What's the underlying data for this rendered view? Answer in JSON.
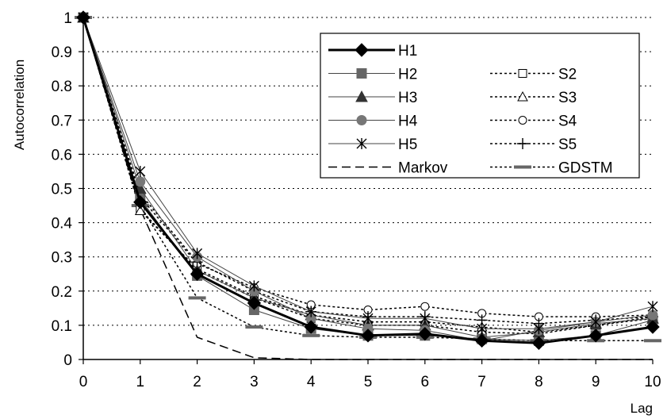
{
  "chart_data": {
    "type": "line",
    "title": "",
    "xlabel": "Lag",
    "ylabel": "Autocorrelation",
    "xlim": [
      0,
      10
    ],
    "ylim": [
      0,
      1
    ],
    "x_ticks": [
      "0",
      "1",
      "2",
      "3",
      "4",
      "5",
      "6",
      "7",
      "8",
      "9",
      "10"
    ],
    "y_ticks": [
      "0",
      "0.1",
      "0.2",
      "0.3",
      "0.4",
      "0.5",
      "0.6",
      "0.7",
      "0.8",
      "0.9",
      "1"
    ],
    "grid": "horizontal dotted",
    "legend_position": "top-right",
    "x": [
      0,
      1,
      2,
      3,
      4,
      5,
      6,
      7,
      8,
      9,
      10
    ],
    "series": [
      {
        "name": "H1",
        "line": "solid",
        "width": 3,
        "marker": "diamond",
        "fill": "#000000",
        "values": [
          1,
          0.46,
          0.25,
          0.165,
          0.095,
          0.07,
          0.075,
          0.055,
          0.048,
          0.07,
          0.095
        ]
      },
      {
        "name": "H2",
        "line": "solid",
        "width": 1,
        "marker": "square",
        "fill": "#666666",
        "values": [
          1,
          0.47,
          0.245,
          0.145,
          0.09,
          0.07,
          0.07,
          0.06,
          0.055,
          0.07,
          0.115
        ]
      },
      {
        "name": "H3",
        "line": "solid",
        "width": 1,
        "marker": "triangle",
        "fill": "#333333",
        "values": [
          1,
          0.5,
          0.26,
          0.18,
          0.13,
          0.1,
          0.1,
          0.065,
          0.08,
          0.105,
          0.12
        ]
      },
      {
        "name": "H4",
        "line": "solid",
        "width": 1,
        "marker": "circle",
        "fill": "#777777",
        "values": [
          1,
          0.52,
          0.3,
          0.2,
          0.12,
          0.09,
          0.085,
          0.055,
          0.085,
          0.11,
          0.13
        ]
      },
      {
        "name": "H5",
        "line": "solid",
        "width": 1,
        "marker": "asterisk",
        "fill": "#000000",
        "values": [
          1,
          0.55,
          0.31,
          0.215,
          0.14,
          0.12,
          0.12,
          0.09,
          0.09,
          0.11,
          0.155
        ]
      },
      {
        "name": "S2",
        "line": "dotted",
        "width": 1.5,
        "marker": "square-open",
        "fill": "#ffffff",
        "values": [
          1,
          0.44,
          0.26,
          0.18,
          0.12,
          0.1,
          0.1,
          0.08,
          0.075,
          0.1,
          0.12
        ]
      },
      {
        "name": "S3",
        "line": "dotted",
        "width": 1.5,
        "marker": "triangle-open",
        "fill": "#ffffff",
        "values": [
          1,
          0.435,
          0.265,
          0.185,
          0.13,
          0.11,
          0.11,
          0.095,
          0.08,
          0.1,
          0.125
        ]
      },
      {
        "name": "S4",
        "line": "dotted",
        "width": 1.5,
        "marker": "circle-open",
        "fill": "#ffffff",
        "values": [
          1,
          0.475,
          0.28,
          0.21,
          0.16,
          0.145,
          0.155,
          0.135,
          0.125,
          0.125,
          0.13
        ]
      },
      {
        "name": "S5",
        "line": "dotted",
        "width": 1.5,
        "marker": "plus",
        "fill": "#000000",
        "values": [
          1,
          0.485,
          0.285,
          0.2,
          0.14,
          0.125,
          0.125,
          0.115,
          0.105,
          0.115,
          0.125
        ]
      },
      {
        "name": "Markov",
        "line": "dashed",
        "width": 1.5,
        "marker": "none",
        "fill": "#000000",
        "values": [
          1,
          0.44,
          0.065,
          0.005,
          0,
          0,
          0,
          0,
          0,
          0,
          0
        ]
      },
      {
        "name": "GDSTM",
        "line": "dotted",
        "width": 1.5,
        "marker": "dash",
        "fill": "#666666",
        "values": [
          1,
          0.45,
          0.18,
          0.095,
          0.07,
          0.065,
          0.065,
          0.06,
          0.055,
          0.055,
          0.055
        ]
      }
    ]
  }
}
